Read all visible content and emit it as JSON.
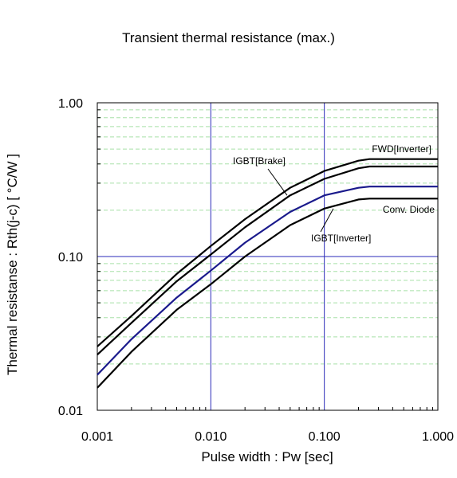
{
  "chart_data": {
    "type": "line",
    "title": "Transient thermal resistance (max.)",
    "xlabel": "Pulse width : Pw [sec]",
    "ylabel": "Thermal resistanse : Rth(j-c) [ °C/W ]",
    "x_scale": "log",
    "y_scale": "log",
    "xlim": [
      0.001,
      1.0
    ],
    "ylim": [
      0.01,
      1.0
    ],
    "x_ticks": [
      0.001,
      0.01,
      0.1,
      1.0
    ],
    "x_tick_labels": [
      "0.001",
      "0.010",
      "0.100",
      "1.000"
    ],
    "y_ticks": [
      0.01,
      0.1,
      1.0
    ],
    "y_tick_labels": [
      "0.01",
      "0.10",
      "1.00"
    ],
    "grid": {
      "major": true,
      "minor": true
    },
    "colors": {
      "major_grid": "#2a2ab8",
      "minor_grid": "#a8e0a8",
      "curve": "#000000",
      "igbt_inverter": "#1a1a8c"
    },
    "series": [
      {
        "name": "FWD[Inverter]",
        "color": "#000000",
        "x": [
          0.001,
          0.002,
          0.005,
          0.01,
          0.02,
          0.05,
          0.1,
          0.2,
          0.25,
          0.5,
          1.0
        ],
        "y": [
          0.026,
          0.041,
          0.077,
          0.117,
          0.175,
          0.28,
          0.36,
          0.42,
          0.43,
          0.43,
          0.43
        ]
      },
      {
        "name": "IGBT[Brake]",
        "color": "#000000",
        "x": [
          0.001,
          0.002,
          0.005,
          0.01,
          0.02,
          0.05,
          0.1,
          0.2,
          0.25,
          0.5,
          1.0
        ],
        "y": [
          0.023,
          0.037,
          0.069,
          0.103,
          0.155,
          0.25,
          0.32,
          0.375,
          0.385,
          0.385,
          0.385
        ]
      },
      {
        "name": "IGBT[Inverter]",
        "color": "#1a1a8c",
        "x": [
          0.001,
          0.002,
          0.005,
          0.01,
          0.02,
          0.05,
          0.1,
          0.2,
          0.25,
          0.5,
          1.0
        ],
        "y": [
          0.017,
          0.029,
          0.054,
          0.081,
          0.123,
          0.195,
          0.25,
          0.28,
          0.285,
          0.285,
          0.285
        ]
      },
      {
        "name": "Conv. Diode",
        "color": "#000000",
        "x": [
          0.001,
          0.002,
          0.005,
          0.01,
          0.02,
          0.05,
          0.1,
          0.2,
          0.25,
          0.5,
          1.0
        ],
        "y": [
          0.014,
          0.024,
          0.045,
          0.066,
          0.1,
          0.16,
          0.205,
          0.235,
          0.238,
          0.238,
          0.238
        ]
      }
    ],
    "annotations": [
      {
        "text": "FWD[Inverter]",
        "series": "FWD[Inverter]",
        "anchor_x": 0.8,
        "anchor_y": 0.43
      },
      {
        "text": "IGBT[Brake]",
        "series": "IGBT[Brake]",
        "anchor_x": 0.047,
        "anchor_y": 0.25
      },
      {
        "text": "Conv. Diode",
        "series": "Conv. Diode",
        "anchor_x": 0.8,
        "anchor_y": 0.238
      },
      {
        "text": "IGBT[Inverter]",
        "series": "IGBT[Inverter]",
        "anchor_x": 0.12,
        "anchor_y": 0.205
      }
    ]
  }
}
